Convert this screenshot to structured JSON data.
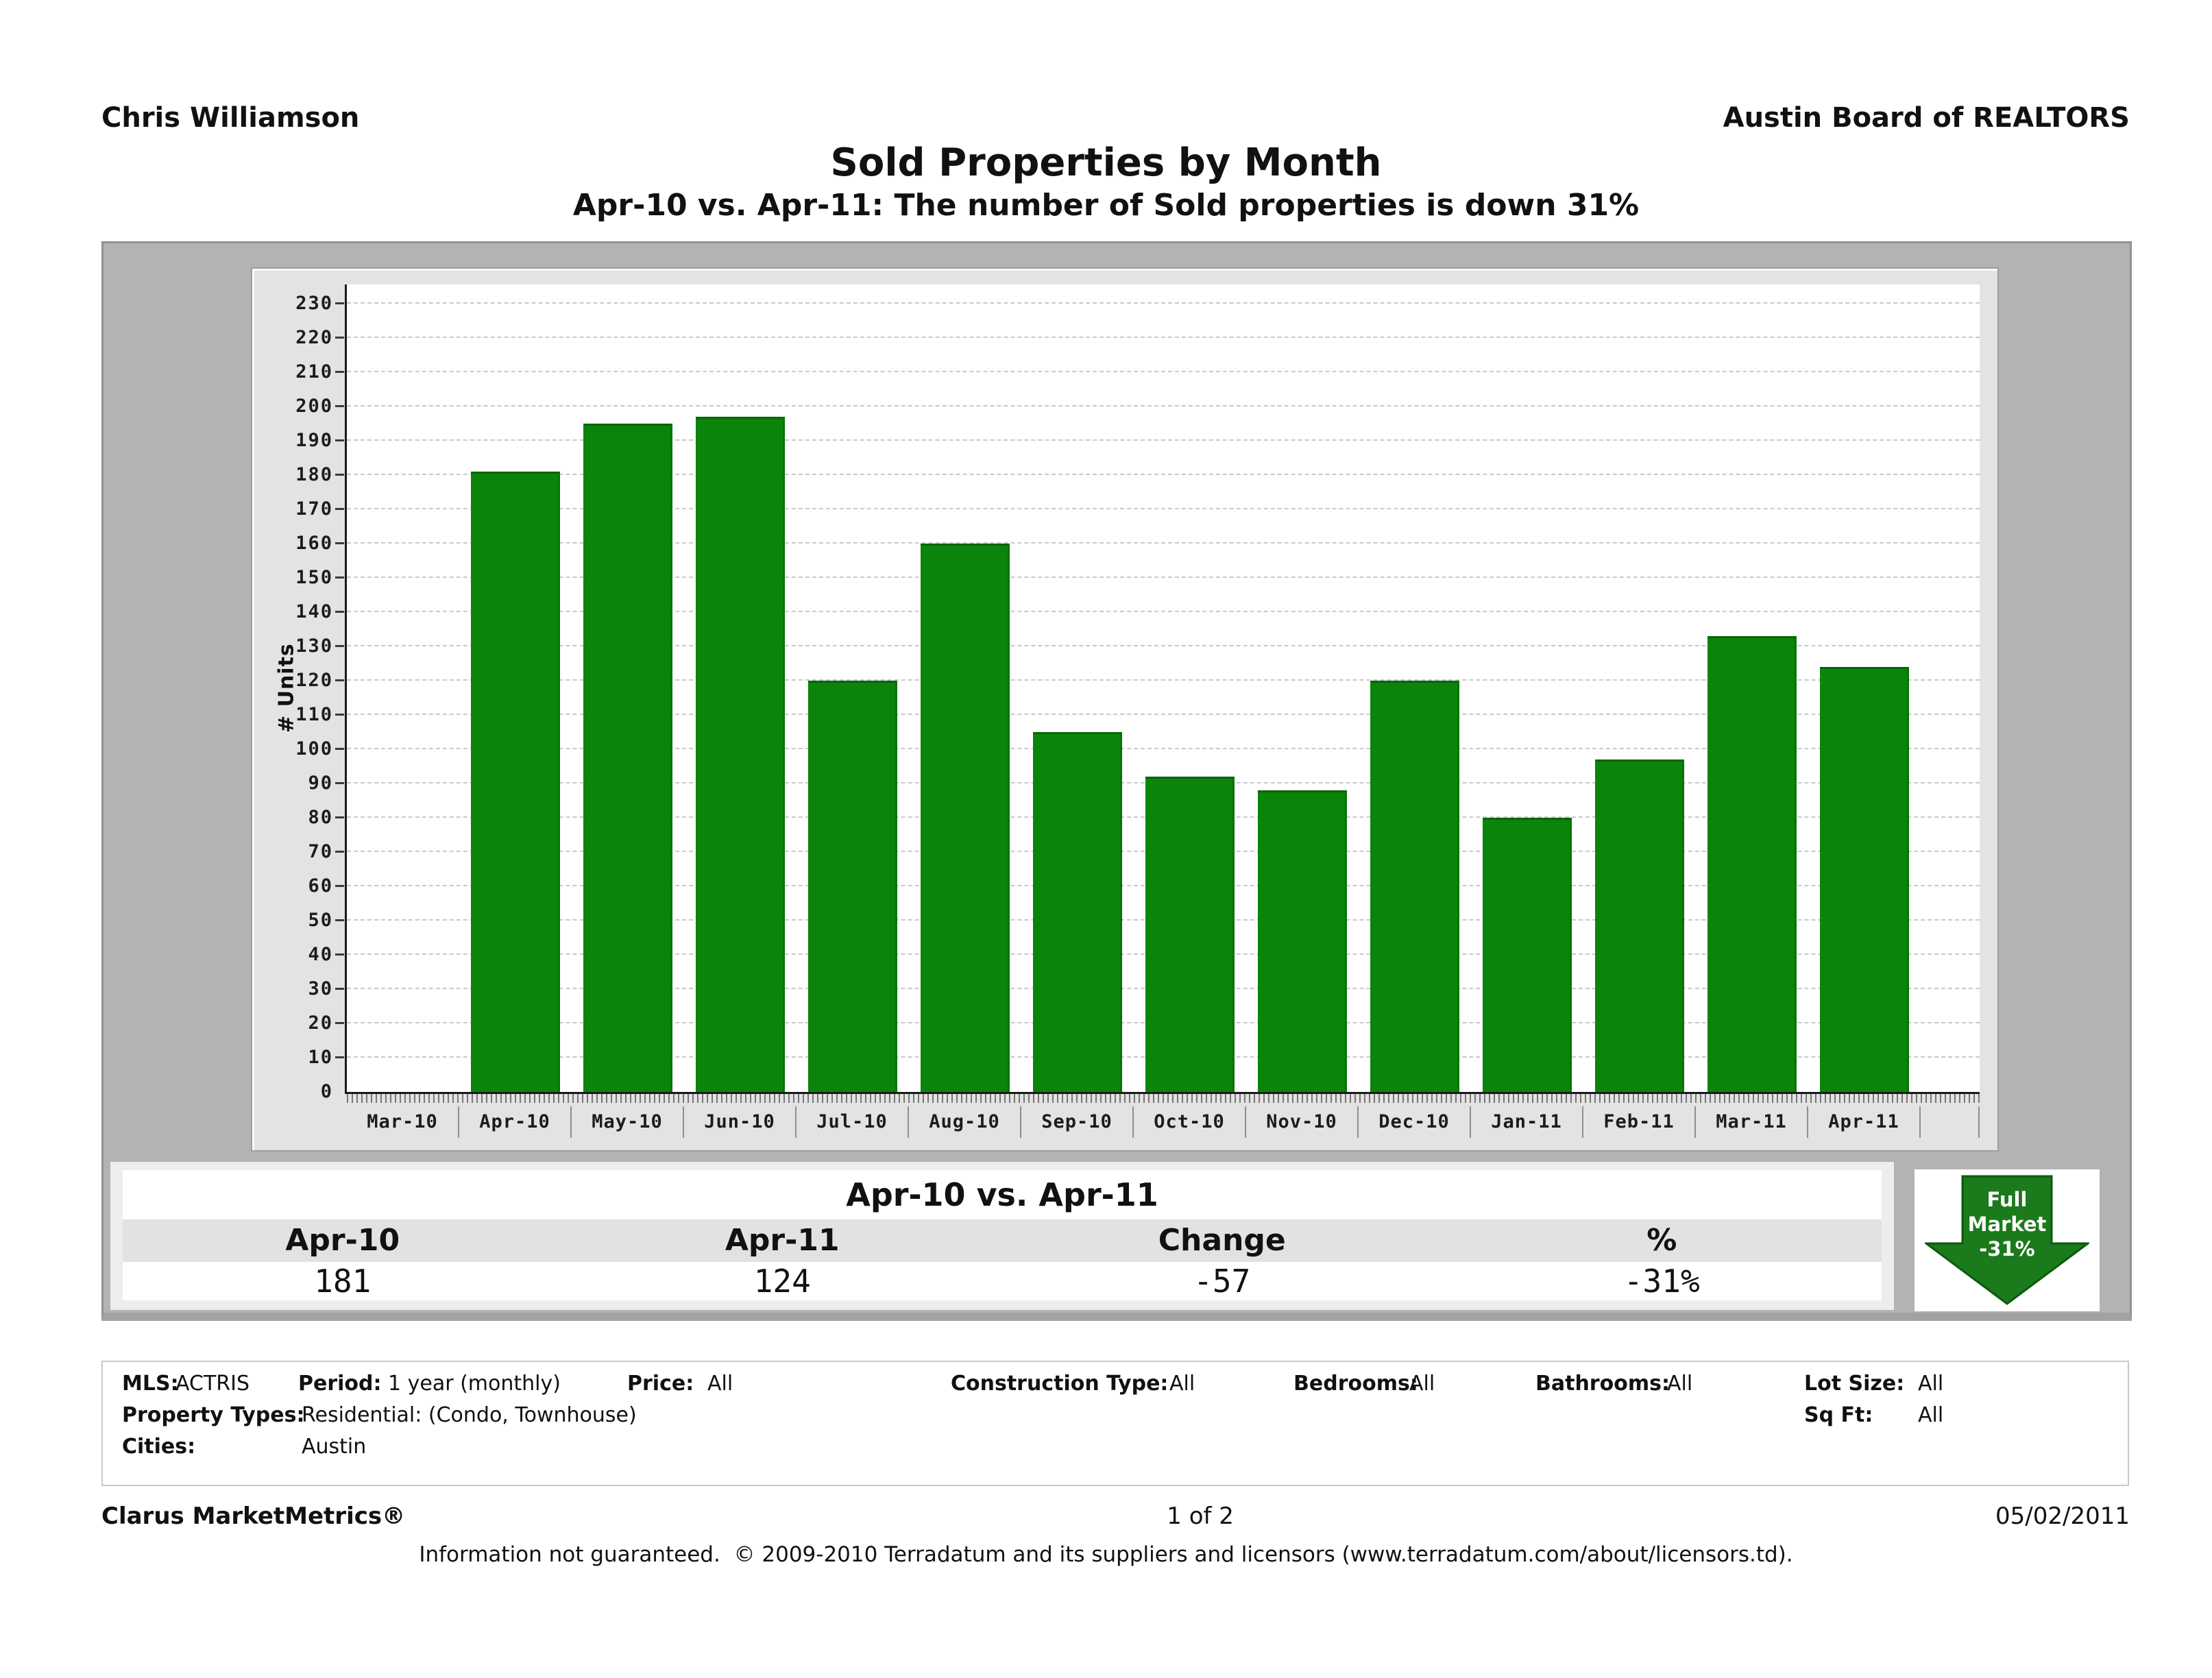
{
  "header": {
    "agent_name": "Chris Williamson",
    "board_name": "Austin Board of REALTORS",
    "title": "Sold Properties by Month",
    "subtitle": "Apr-10 vs. Apr-11: The number of Sold properties is down 31%"
  },
  "chart_data": {
    "type": "bar",
    "title": "Sold Properties by Month",
    "xlabel": "",
    "ylabel": "# Units",
    "categories": [
      "Mar-10",
      "Apr-10",
      "May-10",
      "Jun-10",
      "Jul-10",
      "Aug-10",
      "Sep-10",
      "Oct-10",
      "Nov-10",
      "Dec-10",
      "Jan-11",
      "Feb-11",
      "Mar-11",
      "Apr-11"
    ],
    "values": [
      0,
      181,
      195,
      197,
      120,
      160,
      105,
      92,
      88,
      120,
      80,
      97,
      133,
      124
    ],
    "ylim": [
      0,
      235.5
    ],
    "ytick_step": 10,
    "ytick_max": 230,
    "grid": true,
    "legend": "none",
    "bar_color": "#0a840a"
  },
  "comparison_table": {
    "title": "Apr-10 vs. Apr-11",
    "headers": [
      "Apr-10",
      "Apr-11",
      "Change",
      "%"
    ],
    "values": [
      "181",
      "124",
      "-57",
      "-31%"
    ]
  },
  "badge": {
    "line1": "Full",
    "line2": "Market",
    "percent": "-31%",
    "arrow_color": "#1b7a1b",
    "arrow_edge_color": "#0c5a0c"
  },
  "filters": {
    "mls_label": "MLS:",
    "mls": "ACTRIS",
    "period_label": "Period:",
    "period": "1 year (monthly)",
    "price_label": "Price:",
    "price": "All",
    "construction_label": "Construction Type:",
    "construction": "All",
    "bedrooms_label": "Bedrooms:",
    "bedrooms": "All",
    "bathrooms_label": "Bathrooms:",
    "bathrooms": "All",
    "lot_size_label": "Lot Size:",
    "lot_size": "All",
    "property_types_label": "Property Types:",
    "property_types": "Residential: (Condo, Townhouse)",
    "sq_ft_label": "Sq Ft:",
    "sq_ft": "All",
    "cities_label": "Cities:",
    "cities": "Austin"
  },
  "footer": {
    "brand": "Clarus MarketMetrics®",
    "page_number": "1 of 2",
    "date": "05/02/2011",
    "disclaimer": "Information not guaranteed.  © 2009-2010 Terradatum and its suppliers and licensors (www.terradatum.com/about/licensors.td)."
  }
}
